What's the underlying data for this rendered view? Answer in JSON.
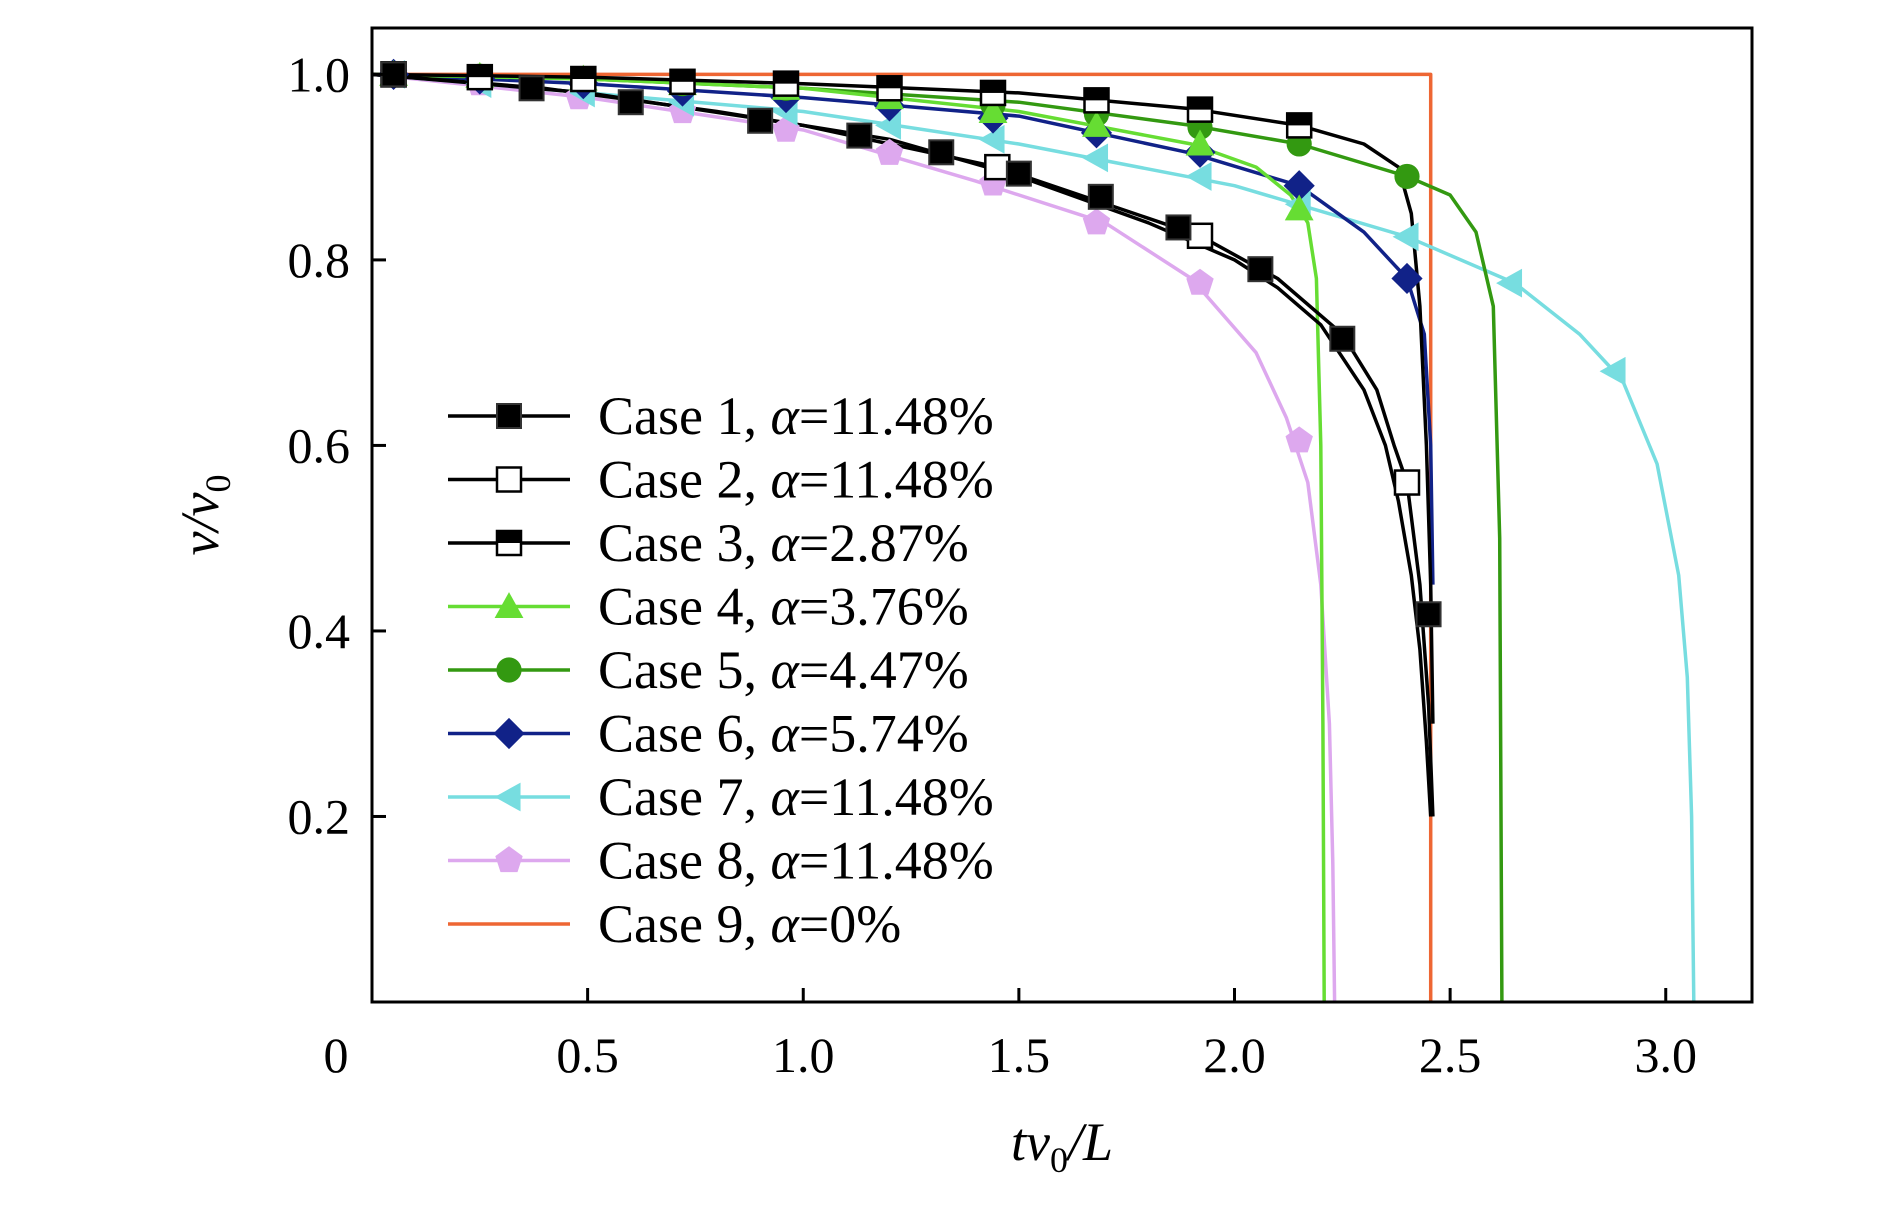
{
  "chart_data": {
    "type": "line",
    "xlabel": {
      "main": "tv",
      "sub": "0",
      "tail": "/L"
    },
    "ylabel": {
      "main": "v/v",
      "sub": "0"
    },
    "xlim": [
      0,
      3.2
    ],
    "ylim": [
      0,
      1.05
    ],
    "xticks": [
      0.5,
      1.0,
      1.5,
      2.0,
      2.5,
      3.0
    ],
    "xtick_labels": [
      "0.5",
      "1.0",
      "1.5",
      "2.0",
      "2.5",
      "3.0"
    ],
    "yticks": [
      0.2,
      0.4,
      0.6,
      0.8,
      1.0
    ],
    "ytick_labels": [
      "0.2",
      "0.4",
      "0.6",
      "0.8",
      "1.0"
    ],
    "origin_label": "0",
    "grid": false,
    "legend_position": "bottom-left",
    "series": [
      {
        "name": "Case 1, α=11.48%",
        "case": "Case 1, ",
        "alpha_sym": "α",
        "alpha_val": "=11.48%",
        "color": "#000000",
        "marker": "square-filled",
        "line": [
          [
            0,
            1.0
          ],
          [
            0.4,
            0.985
          ],
          [
            0.8,
            0.96
          ],
          [
            1.2,
            0.93
          ],
          [
            1.5,
            0.89
          ],
          [
            1.8,
            0.84
          ],
          [
            2.0,
            0.8
          ],
          [
            2.1,
            0.77
          ],
          [
            2.2,
            0.73
          ],
          [
            2.3,
            0.66
          ],
          [
            2.35,
            0.6
          ],
          [
            2.38,
            0.54
          ],
          [
            2.41,
            0.46
          ],
          [
            2.43,
            0.38
          ],
          [
            2.445,
            0.28
          ],
          [
            2.455,
            0.2
          ]
        ],
        "markers": [
          [
            0.05,
            1.0
          ],
          [
            0.37,
            0.985
          ],
          [
            0.6,
            0.97
          ],
          [
            0.9,
            0.95
          ],
          [
            1.13,
            0.934
          ],
          [
            1.32,
            0.916
          ],
          [
            1.5,
            0.893
          ],
          [
            1.69,
            0.868
          ],
          [
            1.87,
            0.835
          ],
          [
            2.06,
            0.79
          ],
          [
            2.25,
            0.715
          ],
          [
            2.45,
            0.418
          ]
        ]
      },
      {
        "name": "Case 2, α=11.48%",
        "case": "Case 2, ",
        "alpha_sym": "α",
        "alpha_val": "=11.48%",
        "color": "#000000",
        "marker": "square-open",
        "line": [
          [
            0,
            1.0
          ],
          [
            0.5,
            0.98
          ],
          [
            1.0,
            0.945
          ],
          [
            1.45,
            0.9
          ],
          [
            1.92,
            0.826
          ],
          [
            2.1,
            0.78
          ],
          [
            2.25,
            0.72
          ],
          [
            2.33,
            0.66
          ],
          [
            2.37,
            0.6
          ],
          [
            2.4,
            0.56
          ],
          [
            2.43,
            0.45
          ],
          [
            2.45,
            0.32
          ],
          [
            2.46,
            0.2
          ]
        ],
        "markers": [
          [
            0.05,
            1.0
          ],
          [
            1.45,
            0.9
          ],
          [
            1.92,
            0.826
          ],
          [
            2.4,
            0.56
          ]
        ]
      },
      {
        "name": "Case 3, α=2.87%",
        "case": "Case 3, ",
        "alpha_sym": "α",
        "alpha_val": "=2.87%",
        "color": "#000000",
        "marker": "square-half",
        "line": [
          [
            0,
            1.0
          ],
          [
            0.5,
            0.997
          ],
          [
            1.0,
            0.99
          ],
          [
            1.5,
            0.98
          ],
          [
            1.9,
            0.963
          ],
          [
            2.15,
            0.945
          ],
          [
            2.3,
            0.925
          ],
          [
            2.38,
            0.9
          ],
          [
            2.41,
            0.85
          ],
          [
            2.43,
            0.75
          ],
          [
            2.445,
            0.6
          ],
          [
            2.455,
            0.45
          ],
          [
            2.46,
            0.3
          ]
        ],
        "markers": [
          [
            0.05,
            1.0
          ],
          [
            0.25,
            0.997
          ],
          [
            0.49,
            0.995
          ],
          [
            0.72,
            0.992
          ],
          [
            0.96,
            0.99
          ],
          [
            1.2,
            0.985
          ],
          [
            1.44,
            0.98
          ],
          [
            1.68,
            0.972
          ],
          [
            1.92,
            0.962
          ],
          [
            2.15,
            0.945
          ]
        ]
      },
      {
        "name": "Case 4, α=3.76%",
        "case": "Case 4, ",
        "alpha_sym": "α",
        "alpha_val": "=3.76%",
        "color": "#66dd33",
        "marker": "triangle-up",
        "line": [
          [
            0,
            1.0
          ],
          [
            0.5,
            0.995
          ],
          [
            1.0,
            0.985
          ],
          [
            1.5,
            0.96
          ],
          [
            1.9,
            0.925
          ],
          [
            2.05,
            0.9
          ],
          [
            2.13,
            0.87
          ],
          [
            2.17,
            0.84
          ],
          [
            2.19,
            0.78
          ],
          [
            2.2,
            0.6
          ],
          [
            2.205,
            0.3
          ],
          [
            2.208,
            0.0
          ]
        ],
        "markers": [
          [
            0.05,
            1.0
          ],
          [
            0.25,
            0.998
          ],
          [
            0.49,
            0.995
          ],
          [
            0.72,
            0.99
          ],
          [
            0.96,
            0.985
          ],
          [
            1.2,
            0.975
          ],
          [
            1.44,
            0.96
          ],
          [
            1.68,
            0.945
          ],
          [
            1.92,
            0.925
          ],
          [
            2.15,
            0.855
          ]
        ]
      },
      {
        "name": "Case 5, α=4.47%",
        "case": "Case 5, ",
        "alpha_sym": "α",
        "alpha_val": "=4.47%",
        "color": "#339911",
        "marker": "circle",
        "line": [
          [
            0,
            1.0
          ],
          [
            0.5,
            0.995
          ],
          [
            1.0,
            0.985
          ],
          [
            1.5,
            0.97
          ],
          [
            1.9,
            0.945
          ],
          [
            2.15,
            0.925
          ],
          [
            2.4,
            0.89
          ],
          [
            2.5,
            0.87
          ],
          [
            2.56,
            0.83
          ],
          [
            2.6,
            0.75
          ],
          [
            2.615,
            0.5
          ],
          [
            2.62,
            0.0
          ]
        ],
        "markers": [
          [
            0.05,
            1.0
          ],
          [
            0.25,
            0.998
          ],
          [
            0.49,
            0.995
          ],
          [
            0.72,
            0.99
          ],
          [
            0.96,
            0.985
          ],
          [
            1.2,
            0.977
          ],
          [
            1.44,
            0.967
          ],
          [
            1.68,
            0.957
          ],
          [
            1.92,
            0.943
          ],
          [
            2.15,
            0.925
          ],
          [
            2.4,
            0.89
          ]
        ]
      },
      {
        "name": "Case 6, α=5.74%",
        "case": "Case 6, ",
        "alpha_sym": "α",
        "alpha_val": "=5.74%",
        "color": "#112288",
        "marker": "diamond",
        "line": [
          [
            0,
            1.0
          ],
          [
            0.5,
            0.99
          ],
          [
            1.0,
            0.975
          ],
          [
            1.5,
            0.955
          ],
          [
            1.9,
            0.915
          ],
          [
            2.15,
            0.88
          ],
          [
            2.3,
            0.83
          ],
          [
            2.4,
            0.78
          ],
          [
            2.44,
            0.72
          ],
          [
            2.455,
            0.6
          ],
          [
            2.46,
            0.45
          ]
        ],
        "markers": [
          [
            0.05,
            1.0
          ],
          [
            0.25,
            0.995
          ],
          [
            0.49,
            0.99
          ],
          [
            0.72,
            0.982
          ],
          [
            0.96,
            0.975
          ],
          [
            1.2,
            0.966
          ],
          [
            1.44,
            0.953
          ],
          [
            1.68,
            0.937
          ],
          [
            1.92,
            0.916
          ],
          [
            2.15,
            0.88
          ],
          [
            2.4,
            0.78
          ]
        ]
      },
      {
        "name": "Case 7, α=11.48%",
        "case": "Case 7, ",
        "alpha_sym": "α",
        "alpha_val": "=11.48%",
        "color": "#77dde0",
        "marker": "triangle-left",
        "line": [
          [
            0,
            1.0
          ],
          [
            0.5,
            0.98
          ],
          [
            1.0,
            0.96
          ],
          [
            1.5,
            0.925
          ],
          [
            2.0,
            0.88
          ],
          [
            2.4,
            0.825
          ],
          [
            2.65,
            0.775
          ],
          [
            2.8,
            0.72
          ],
          [
            2.9,
            0.67
          ],
          [
            2.98,
            0.58
          ],
          [
            3.03,
            0.46
          ],
          [
            3.05,
            0.35
          ],
          [
            3.06,
            0.2
          ],
          [
            3.065,
            0.0
          ]
        ],
        "markers": [
          [
            0.05,
            1.0
          ],
          [
            0.25,
            0.99
          ],
          [
            0.49,
            0.98
          ],
          [
            0.72,
            0.97
          ],
          [
            0.96,
            0.96
          ],
          [
            1.2,
            0.945
          ],
          [
            1.44,
            0.93
          ],
          [
            1.68,
            0.91
          ],
          [
            1.92,
            0.89
          ],
          [
            2.15,
            0.86
          ],
          [
            2.4,
            0.825
          ],
          [
            2.64,
            0.775
          ],
          [
            2.88,
            0.68
          ]
        ]
      },
      {
        "name": "Case 8, α=11.48%",
        "case": "Case 8, ",
        "alpha_sym": "α",
        "alpha_val": "=11.48%",
        "color": "#dda8ee",
        "marker": "pentagon",
        "line": [
          [
            0,
            1.0
          ],
          [
            0.5,
            0.975
          ],
          [
            1.0,
            0.94
          ],
          [
            1.4,
            0.885
          ],
          [
            1.7,
            0.84
          ],
          [
            1.9,
            0.78
          ],
          [
            2.05,
            0.7
          ],
          [
            2.12,
            0.63
          ],
          [
            2.17,
            0.56
          ],
          [
            2.2,
            0.45
          ],
          [
            2.22,
            0.3
          ],
          [
            2.228,
            0.15
          ],
          [
            2.232,
            0.0
          ]
        ],
        "markers": [
          [
            0.05,
            1.0
          ],
          [
            0.25,
            0.99
          ],
          [
            0.48,
            0.975
          ],
          [
            0.72,
            0.96
          ],
          [
            0.96,
            0.94
          ],
          [
            1.2,
            0.915
          ],
          [
            1.44,
            0.882
          ],
          [
            1.68,
            0.84
          ],
          [
            1.92,
            0.775
          ],
          [
            2.15,
            0.605
          ]
        ]
      },
      {
        "name": "Case 9, α=0%",
        "case": "Case 9, ",
        "alpha_sym": "α",
        "alpha_val": "=0%",
        "color": "#ee6633",
        "marker": "none",
        "line": [
          [
            0,
            1.0
          ],
          [
            2.455,
            1.0
          ],
          [
            2.455,
            0.0
          ]
        ],
        "markers": []
      }
    ]
  }
}
